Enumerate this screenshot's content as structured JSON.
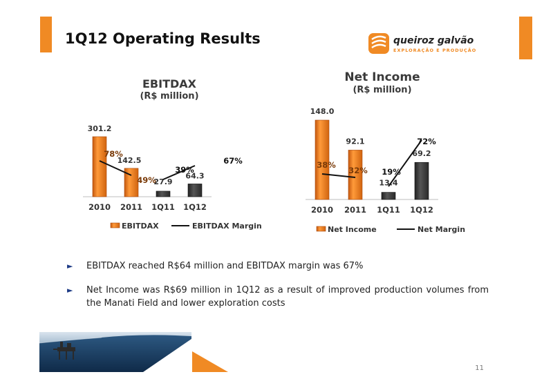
{
  "title": "1Q12 Operating Results",
  "logo": {
    "name": "queiroz galvão",
    "tagline": "EXPLORAÇÃO E PRODUÇÃO"
  },
  "page_number": "11",
  "colors": {
    "accent": "#f08a24",
    "bar_dark": "#3a3a3a",
    "bullet": "#1f3c86"
  },
  "chart_data": [
    {
      "type": "bar",
      "title": "EBITDAX",
      "subtitle": "(R$ million)",
      "categories": [
        "2010",
        "2011",
        "1Q11",
        "1Q12"
      ],
      "series": [
        {
          "name": "EBITDAX",
          "values": [
            301.2,
            142.5,
            27.9,
            64.3
          ],
          "value_labels": [
            "301.2",
            "142.5",
            "27.9",
            "64.3"
          ]
        }
      ],
      "line_series": {
        "name": "EBITDAX Margin",
        "values": [
          78,
          49,
          39,
          67
        ],
        "labels": [
          "78%",
          "49%",
          "39%",
          "67%"
        ]
      },
      "legend": [
        "EBITDAX",
        "EBITDAX Margin"
      ],
      "ylim": [
        0,
        320
      ]
    },
    {
      "type": "bar",
      "title": "Net Income",
      "subtitle": "(R$ million)",
      "categories": [
        "2010",
        "2011",
        "1Q11",
        "1Q12"
      ],
      "series": [
        {
          "name": "Net Income",
          "values": [
            148.0,
            92.1,
            13.4,
            69.2
          ],
          "value_labels": [
            "148.0",
            "92.1",
            "13.4",
            "69.2"
          ]
        }
      ],
      "line_series": {
        "name": "Net Margin",
        "values": [
          38,
          32,
          19,
          72
        ],
        "labels": [
          "38%",
          "32%",
          "19%",
          "72%"
        ]
      },
      "legend": [
        "Net Income",
        "Net Margin"
      ],
      "ylim": [
        0,
        150
      ]
    }
  ],
  "bullets": [
    "EBITDAX reached R$64 million and EBITDAX margin was 67%",
    "Net Income was R$69 million in 1Q12 as a result of improved production volumes from the Manati Field and lower exploration costs"
  ]
}
